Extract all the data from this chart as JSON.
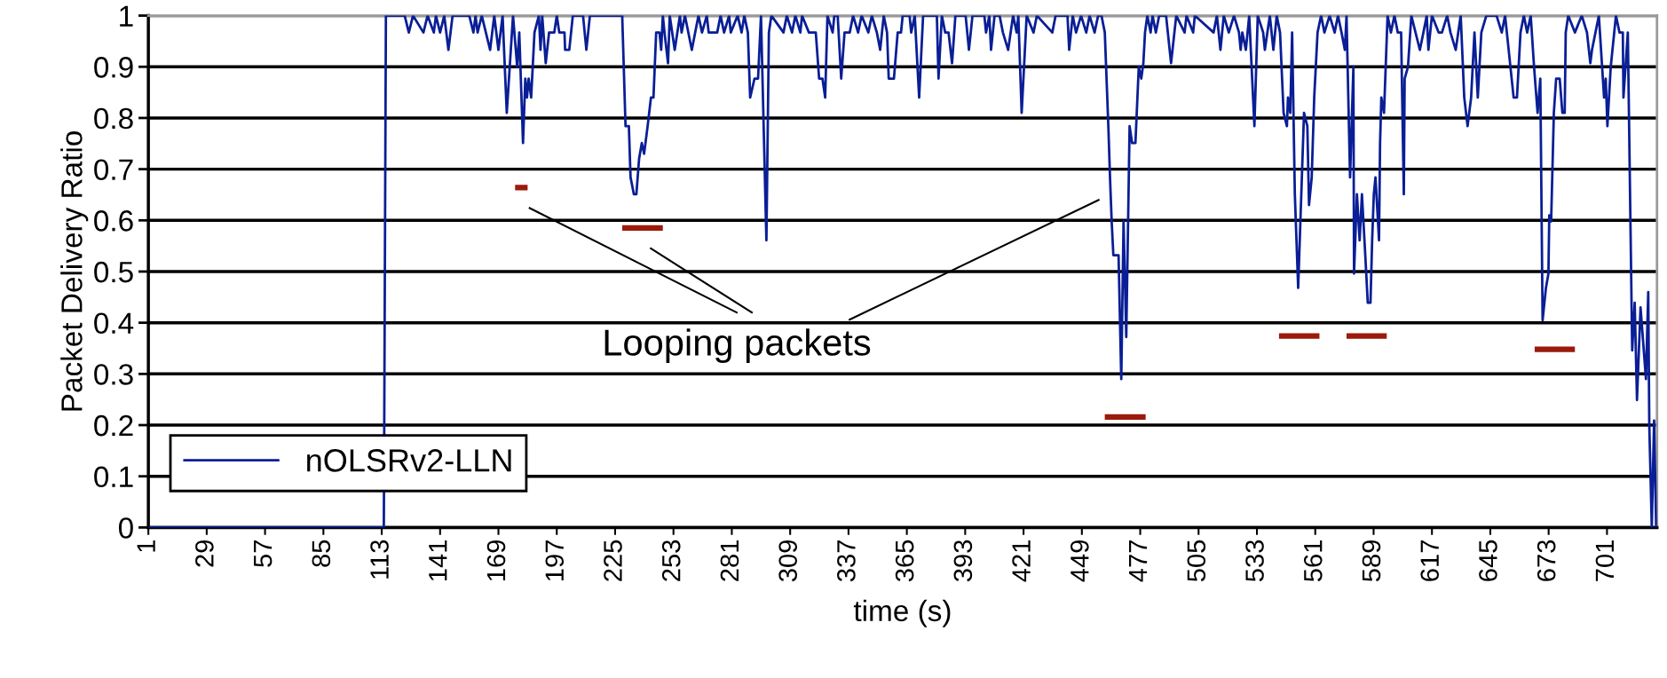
{
  "chart_data": {
    "type": "line",
    "xlabel": "time (s)",
    "ylabel": "Packet Delivery Ratio",
    "xlim": [
      1,
      725
    ],
    "xticks": [
      1,
      29,
      57,
      85,
      113,
      141,
      169,
      197,
      225,
      253,
      281,
      309,
      337,
      365,
      393,
      421,
      449,
      477,
      505,
      533,
      561,
      589,
      617,
      645,
      673,
      701
    ],
    "ylim": [
      0,
      1
    ],
    "yticks": [
      0,
      0.1,
      0.2,
      0.3,
      0.4,
      0.5,
      0.6,
      0.7,
      0.8,
      0.9,
      1
    ],
    "grid": "y",
    "legend": "bottom left",
    "line_style": "solid",
    "marker": "none",
    "annotations": [
      "Looping packets"
    ],
    "series": [
      {
        "name": "nOLSRv2-LLN",
        "color": "#0a1e96",
        "x": [
          1,
          114,
          115,
          124,
          126,
          128,
          133,
          135,
          138,
          139,
          141,
          143,
          145,
          147,
          155,
          157,
          158,
          159,
          161,
          165,
          167,
          169,
          171,
          173,
          176,
          178,
          179,
          180.8,
          181.9,
          182.7,
          183.5,
          184.7,
          186.3,
          188.4,
          189.2,
          190,
          191.7,
          193.3,
          195.8,
          197,
          198.2,
          200.7,
          201,
          203,
          204.7,
          209.6,
          211.2,
          212.9,
          228.4,
          230,
          231.6,
          232.4,
          234,
          235.2,
          236.5,
          237.8,
          238.9,
          240.6,
          242.2,
          243.4,
          244.7,
          246.3,
          247.1,
          247.9,
          248.7,
          250.4,
          251.2,
          253.6,
          256.1,
          256.9,
          258.5,
          261.8,
          265,
          266.7,
          269,
          269.9,
          274,
          275.6,
          277.3,
          279.7,
          280.5,
          283.8,
          285.7,
          287,
          288.7,
          289.8,
          291.9,
          293.6,
          295,
          297.6,
          298.8,
          300,
          305.8,
          307.4,
          309.9,
          311.5,
          313.9,
          314.7,
          318,
          321.3,
          322.9,
          324.5,
          325.8,
          326.9,
          329.4,
          330.2,
          331.8,
          333.5,
          335.1,
          337.6,
          339.2,
          341.6,
          343.3,
          346.5,
          348.2,
          350.6,
          352.2,
          353.9,
          355.5,
          356.3,
          358.8,
          360.6,
          362.2,
          363,
          366.3,
          367.1,
          368.8,
          370.9,
          372.8,
          379.4,
          380.2,
          381.8,
          383.4,
          385,
          386.7,
          388.3,
          393.2,
          394.8,
          396.5,
          402.2,
          403,
          404.6,
          405.4,
          407.1,
          409.5,
          411.1,
          413.6,
          416,
          417.7,
          418.5,
          420.1,
          422.5,
          425.8,
          427.4,
          434.8,
          436.4,
          442.1,
          442.9,
          444.6,
          446.2,
          448.6,
          451.1,
          452.7,
          455.1,
          456.8,
          458.4,
          460,
          461.7,
          462.5,
          463.3,
          464.1,
          466.6,
          467.9,
          469,
          470.3,
          471.9,
          473.1,
          474.7,
          476.3,
          477.5,
          478.5,
          479.3,
          480.4,
          482,
          482.9,
          484.5,
          486.1,
          489.4,
          491.8,
          493.4,
          494.3,
          498.3,
          499.2,
          502.4,
          503.2,
          512.2,
          513.8,
          515.5,
          517.1,
          519.5,
          522,
          524.4,
          525.2,
          526,
          527.7,
          529.3,
          531.8,
          533.4,
          536,
          536.8,
          539.2,
          540.9,
          542.5,
          544.1,
          545.8,
          547.4,
          547.9,
          549,
          549.9,
          551.2,
          552.8,
          555.6,
          557.2,
          558,
          559.3,
          560.5,
          562.1,
          563.8,
          565.4,
          567.9,
          570.3,
          571.9,
          573.6,
          575.2,
          576,
          577.7,
          579.3,
          579.6,
          581,
          582.3,
          583.4,
          585,
          586.2,
          587.5,
          588.3,
          589.1,
          589.9,
          591.6,
          592.1,
          592.7,
          594,
          595.7,
          597.3,
          599,
          600.6,
          602.2,
          603.5,
          603.9,
          605.5,
          607.1,
          611.2,
          612.9,
          614.5,
          615.3,
          617,
          620.2,
          621.8,
          624.3,
          625.9,
          628.4,
          630.8,
          632.5,
          634.1,
          635.8,
          637.4,
          639,
          640.7,
          643.1,
          648,
          650.5,
          652.1,
          656.2,
          657.8,
          659.5,
          661.1,
          662.7,
          664.4,
          666,
          667.7,
          669,
          670.1,
          671.7,
          672.9,
          673.3,
          674.2,
          675.5,
          676.6,
          678.3,
          679.6,
          680.7,
          681.2,
          682.4,
          685.6,
          688.9,
          691.4,
          693,
          693.8,
          697.1,
          699.6,
          700.4,
          701.2,
          702.8,
          705.3,
          707,
          708.6,
          708.9,
          711,
          713.1,
          714.3,
          715.4,
          717.1,
          719.7,
          720.8,
          721.3,
          722.5,
          723.6,
          724.6
        ],
        "values": [
          0,
          0,
          1,
          1,
          0.967,
          1,
          0.967,
          1,
          0.967,
          1,
          0.967,
          1,
          0.933,
          1,
          1,
          0.967,
          1,
          0.967,
          1,
          0.933,
          1,
          0.933,
          1,
          0.81,
          1,
          0.9,
          0.967,
          0.751,
          0.877,
          0.84,
          0.877,
          0.84,
          0.967,
          1,
          0.933,
          1,
          0.907,
          0.967,
          0.967,
          1,
          0.967,
          0.967,
          0.933,
          0.933,
          1,
          1,
          0.933,
          1,
          1,
          0.784,
          0.784,
          0.684,
          0.651,
          0.651,
          0.72,
          0.751,
          0.73,
          0.784,
          0.84,
          0.84,
          0.967,
          0.967,
          0.933,
          1,
          0.967,
          0.907,
          1,
          0.933,
          1,
          0.967,
          1,
          0.933,
          1,
          0.967,
          1,
          0.967,
          0.967,
          1,
          0.967,
          1,
          0.967,
          1,
          0.967,
          1,
          0.967,
          0.84,
          0.877,
          0.877,
          1,
          0.561,
          0.967,
          1,
          0.967,
          1,
          0.967,
          1,
          0.967,
          1,
          0.967,
          0.967,
          0.877,
          0.877,
          0.84,
          1,
          0.967,
          1,
          1,
          0.877,
          0.967,
          0.967,
          1,
          0.967,
          1,
          0.967,
          1,
          0.967,
          0.933,
          1,
          0.967,
          0.877,
          0.877,
          0.967,
          0.967,
          1,
          1,
          0.967,
          1,
          0.84,
          1,
          1,
          0.877,
          1,
          0.967,
          0.967,
          0.907,
          1,
          1,
          0.933,
          1,
          1,
          0.967,
          1,
          0.933,
          1,
          1,
          0.967,
          0.933,
          1,
          0.967,
          1,
          0.81,
          1,
          0.967,
          1,
          0.967,
          1,
          1,
          0.933,
          1,
          0.967,
          1,
          0.967,
          1,
          0.967,
          1,
          1,
          0.967,
          0.784,
          0.684,
          0.598,
          0.532,
          0.532,
          0.29,
          0.598,
          0.372,
          0.784,
          0.751,
          0.751,
          0.9,
          0.877,
          0.907,
          0.967,
          1,
          0.967,
          1,
          0.967,
          1,
          1,
          0.907,
          0.967,
          1,
          0.967,
          1,
          0.967,
          1,
          0.967,
          1,
          0.933,
          1,
          0.967,
          1,
          0.967,
          0.933,
          0.967,
          0.933,
          1,
          0.784,
          1,
          0.967,
          0.933,
          1,
          0.933,
          1,
          0.967,
          0.81,
          0.784,
          0.84,
          0.81,
          0.967,
          0.651,
          0.468,
          0.81,
          0.784,
          0.63,
          0.684,
          0.84,
          0.967,
          1,
          0.967,
          1,
          0.967,
          1,
          0.967,
          0.933,
          1,
          0.684,
          0.9,
          0.496,
          0.651,
          0.561,
          0.651,
          0.532,
          0.439,
          0.439,
          0.561,
          0.651,
          0.684,
          0.561,
          0.751,
          0.84,
          0.81,
          1,
          0.967,
          1,
          0.967,
          0.967,
          0.651,
          0.877,
          0.9,
          1,
          0.933,
          0.967,
          1,
          0.933,
          1,
          0.967,
          0.967,
          1,
          0.967,
          0.933,
          1,
          0.84,
          0.784,
          0.84,
          0.967,
          0.84,
          0.967,
          1,
          1,
          0.967,
          1,
          0.84,
          0.84,
          0.967,
          1,
          0.967,
          1,
          0.9,
          0.81,
          0.877,
          0.405,
          0.468,
          0.496,
          0.61,
          0.598,
          0.81,
          0.877,
          0.877,
          0.81,
          0.81,
          0.967,
          1,
          0.967,
          1,
          0.967,
          0.907,
          0.933,
          1,
          0.84,
          0.877,
          0.784,
          0.9,
          1,
          0.967,
          0.967,
          0.84,
          0.967,
          0.346,
          0.439,
          0.249,
          0.43,
          0.29,
          0.46,
          0.2,
          0,
          0.209,
          0
        ]
      },
      {
        "color": "#9b1a0b",
        "x": [
          177,
          183
        ],
        "values": [
          0.664,
          0.664
        ]
      },
      {
        "color": "#9b1a0b",
        "x": [
          228.4,
          247.9
        ],
        "values": [
          0.585,
          0.585
        ]
      },
      {
        "color": "#9b1a0b",
        "x": [
          460,
          479.6
        ],
        "values": [
          0.216,
          0.216
        ]
      },
      {
        "color": "#9b1a0b",
        "x": [
          543.6,
          563
        ],
        "values": [
          0.374,
          0.374
        ]
      },
      {
        "color": "#9b1a0b",
        "x": [
          576,
          595.3
        ],
        "values": [
          0.374,
          0.374
        ]
      },
      {
        "color": "#9b1a0b",
        "x": [
          666.3,
          685.6
        ],
        "values": [
          0.348,
          0.348
        ]
      }
    ]
  }
}
